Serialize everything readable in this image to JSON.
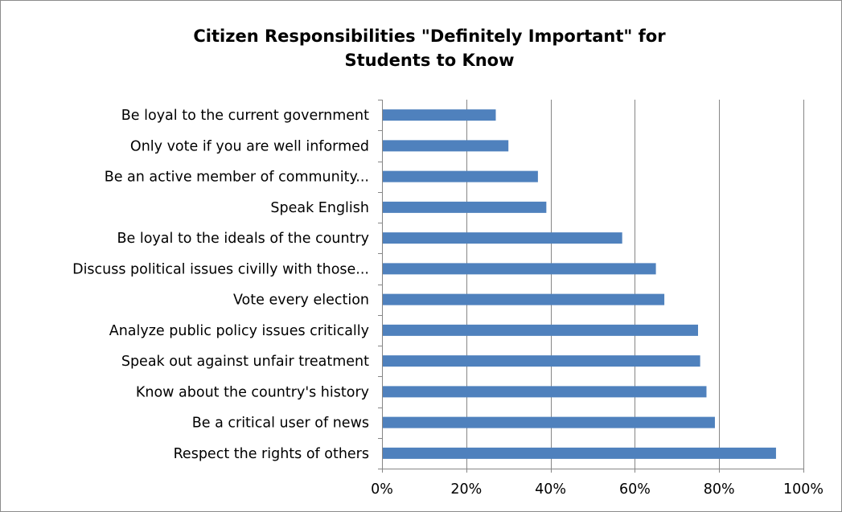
{
  "chart_data": {
    "type": "bar",
    "orientation": "horizontal",
    "title": "Citizen Responsibilities \"Definitely Important\" for Students to Know",
    "title_lines": [
      "Citizen Responsibilities \"Definitely Important\" for",
      "Students to Know"
    ],
    "categories": [
      "Be loyal to the current government",
      "Only vote if you are well informed",
      "Be an active member of community...",
      "Speak English",
      "Be loyal to the ideals of the country",
      "Discuss political issues civilly with those...",
      "Vote every election",
      "Analyze public policy issues critically",
      "Speak out against unfair treatment",
      "Know about the country's history",
      "Be a critical user of news",
      "Respect the rights of others"
    ],
    "values": [
      0.27,
      0.3,
      0.37,
      0.39,
      0.57,
      0.65,
      0.67,
      0.75,
      0.755,
      0.77,
      0.79,
      0.935
    ],
    "xlim": [
      0,
      1
    ],
    "x_ticks": [
      0,
      0.2,
      0.4,
      0.6,
      0.8,
      1.0
    ],
    "x_tick_labels": [
      "0%",
      "20%",
      "40%",
      "60%",
      "80%",
      "100%"
    ],
    "xlabel": "",
    "ylabel": "",
    "grid": "vertical",
    "legend": "none",
    "colors": {
      "bar": "#4f81bd",
      "grid": "#868686",
      "axis": "#868686"
    }
  }
}
